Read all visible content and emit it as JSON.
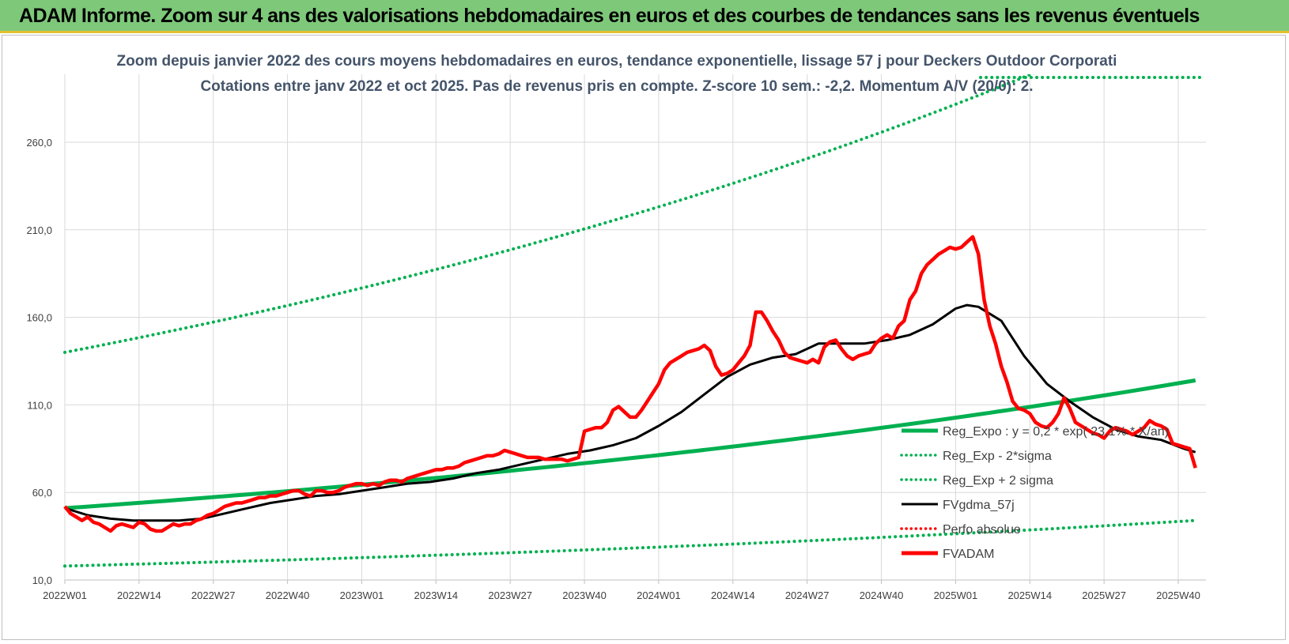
{
  "banner": {
    "title": "ADAM Informe. Zoom sur 4 ans des valorisations hebdomadaires en euros et des courbes de tendances sans les revenus éventuels"
  },
  "chart_data": {
    "type": "line",
    "title_lines": [
      "Zoom depuis janvier 2022 des cours moyens hebdomadaires en euros, tendance exponentielle, lissage 57 j pour Deckers Outdoor Corporati",
      "Cotations entre janv 2022 et oct 2025. Pas de revenus pris en compte. Z-score 10 sem.: -2,2. Momentum A/V (20/0): 2."
    ],
    "ylim": [
      10,
      290
    ],
    "yticks": [
      10,
      60,
      110,
      160,
      210,
      260
    ],
    "ytick_labels": [
      "10,0",
      "60,0",
      "110,0",
      "160,0",
      "210,0",
      "260,0"
    ],
    "xlim": [
      0,
      198
    ],
    "xticks": [
      0,
      13,
      26,
      39,
      52,
      65,
      78,
      91,
      104,
      117,
      130,
      143,
      156,
      169,
      182,
      195
    ],
    "xtick_labels": [
      "2022W01",
      "2022W14",
      "2022W27",
      "2022W40",
      "2023W01",
      "2023W14",
      "2023W27",
      "2023W40",
      "2024W01",
      "2024W14",
      "2024W27",
      "2024W40",
      "2025W01",
      "2025W14",
      "2025W27",
      "2025W40"
    ],
    "grid": true,
    "legend_position": "right",
    "legend": [
      {
        "label": "Reg_Expo : y = 0,2 * exp( 23,1% * X/an)",
        "color": "#00b050",
        "style": "solid-thick"
      },
      {
        "label": "Reg_Exp - 2*sigma",
        "color": "#00b050",
        "style": "dotted"
      },
      {
        "label": "Reg_Exp + 2 sigma",
        "color": "#00b050",
        "style": "dotted"
      },
      {
        "label": "FVgdma_57j",
        "color": "#000000",
        "style": "solid"
      },
      {
        "label": "Perfo absolue",
        "color": "#ff0000",
        "style": "dotted"
      },
      {
        "label": "FVADAM",
        "color": "#ff0000",
        "style": "solid-thick"
      }
    ],
    "series": [
      {
        "name": "Reg_Expo : y = 0,2 * exp( 23,1% * X/an)",
        "color": "#00b050",
        "x": [
          0,
          198
        ],
        "y": [
          51,
          124
        ]
      },
      {
        "name": "Reg_Exp - 2*sigma",
        "color": "#00b050",
        "x": [
          0,
          198
        ],
        "y": [
          18,
          44
        ]
      },
      {
        "name": "Reg_Exp + 2 sigma",
        "color": "#00b050",
        "x": [
          0,
          198
        ],
        "y": [
          140,
          340
        ]
      },
      {
        "name": "FVgdma_57j",
        "color": "#000000",
        "x": [
          0,
          4,
          8,
          12,
          16,
          20,
          24,
          28,
          32,
          36,
          40,
          44,
          48,
          52,
          56,
          60,
          64,
          68,
          72,
          76,
          80,
          84,
          88,
          92,
          96,
          100,
          104,
          108,
          112,
          116,
          120,
          124,
          128,
          132,
          136,
          140,
          144,
          148,
          152,
          156,
          158,
          160,
          164,
          168,
          172,
          176,
          180,
          184,
          188,
          192,
          196,
          198
        ],
        "y": [
          51,
          47,
          45,
          44,
          44,
          44,
          45,
          48,
          51,
          54,
          56,
          58,
          59,
          61,
          63,
          65,
          66,
          68,
          71,
          73,
          76,
          79,
          82,
          84,
          87,
          91,
          98,
          106,
          116,
          126,
          133,
          137,
          139,
          145,
          145,
          145,
          147,
          150,
          156,
          165,
          167,
          166,
          158,
          138,
          122,
          112,
          103,
          96,
          92,
          90,
          85,
          83
        ]
      },
      {
        "name": "FVADAM",
        "color": "#ff0000",
        "x": [
          0,
          1,
          2,
          3,
          4,
          5,
          6,
          7,
          8,
          9,
          10,
          11,
          12,
          13,
          14,
          15,
          16,
          17,
          18,
          19,
          20,
          21,
          22,
          23,
          24,
          25,
          26,
          27,
          28,
          29,
          30,
          31,
          32,
          33,
          34,
          35,
          36,
          37,
          38,
          39,
          40,
          41,
          42,
          43,
          44,
          45,
          46,
          47,
          48,
          49,
          50,
          51,
          52,
          53,
          54,
          55,
          56,
          57,
          58,
          59,
          60,
          61,
          62,
          63,
          64,
          65,
          66,
          67,
          68,
          69,
          70,
          71,
          72,
          73,
          74,
          75,
          76,
          77,
          78,
          79,
          80,
          81,
          82,
          83,
          84,
          85,
          86,
          87,
          88,
          89,
          90,
          91,
          92,
          93,
          94,
          95,
          96,
          97,
          98,
          99,
          100,
          101,
          102,
          103,
          104,
          105,
          106,
          107,
          108,
          109,
          110,
          111,
          112,
          113,
          114,
          115,
          116,
          117,
          118,
          119,
          120,
          121,
          122,
          123,
          124,
          125,
          126,
          127,
          128,
          129,
          130,
          131,
          132,
          133,
          134,
          135,
          136,
          137,
          138,
          139,
          140,
          141,
          142,
          143,
          144,
          145,
          146,
          147,
          148,
          149,
          150,
          151,
          152,
          153,
          154,
          155,
          156,
          157,
          158,
          159,
          160,
          161,
          162,
          163,
          164,
          165,
          166,
          167,
          168,
          169,
          170,
          171,
          172,
          173,
          174,
          175,
          176,
          177,
          178,
          179,
          180,
          181,
          182,
          183,
          184,
          185,
          186,
          187,
          188,
          189,
          190,
          191,
          192,
          193,
          194,
          195,
          196,
          197,
          198
        ],
        "y": [
          52,
          48,
          46,
          44,
          46,
          43,
          42,
          40,
          38,
          41,
          42,
          41,
          40,
          43,
          42,
          39,
          38,
          38,
          40,
          42,
          41,
          42,
          42,
          44,
          45,
          47,
          48,
          50,
          52,
          53,
          54,
          54,
          55,
          56,
          57,
          57,
          58,
          58,
          59,
          60,
          61,
          61,
          59,
          58,
          61,
          61,
          60,
          60,
          61,
          63,
          64,
          65,
          65,
          64,
          65,
          64,
          66,
          67,
          67,
          66,
          68,
          69,
          70,
          71,
          72,
          73,
          73,
          74,
          74,
          75,
          77,
          78,
          79,
          80,
          81,
          81,
          82,
          84,
          83,
          82,
          81,
          80,
          80,
          80,
          79,
          79,
          79,
          79,
          78,
          79,
          80,
          95,
          96,
          97,
          97,
          100,
          107,
          109,
          106,
          103,
          103,
          107,
          112,
          117,
          122,
          130,
          134,
          136,
          138,
          140,
          141,
          142,
          144,
          141,
          132,
          127,
          128,
          130,
          134,
          138,
          144,
          163,
          163,
          158,
          152,
          147,
          140,
          137,
          136,
          135,
          134,
          136,
          134,
          143,
          146,
          147,
          142,
          138,
          136,
          138,
          139,
          140,
          145,
          148,
          150,
          148,
          155,
          158,
          170,
          175,
          185,
          190,
          193,
          196,
          198,
          200,
          199,
          200,
          203,
          206,
          196,
          170,
          155,
          145,
          132,
          123,
          112,
          108,
          107,
          105,
          100,
          98,
          97,
          100,
          105,
          114,
          108,
          100,
          98,
          96,
          94,
          93,
          91,
          95,
          97,
          96,
          95,
          93,
          95,
          97,
          101,
          99,
          98,
          96,
          88,
          87,
          86,
          85,
          74
        ]
      }
    ]
  }
}
